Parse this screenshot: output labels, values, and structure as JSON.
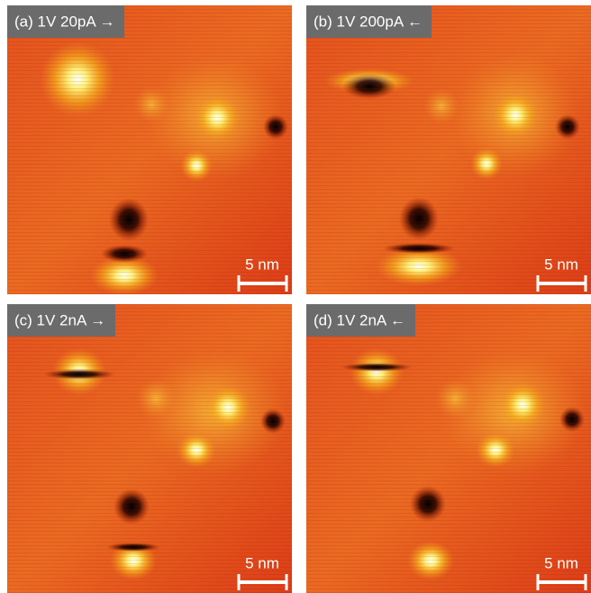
{
  "panels": [
    {
      "label": "(a) 1V 20pA →",
      "scale_bar": "5 nm"
    },
    {
      "label": "(b) 1V 200pA ←",
      "scale_bar": "5 nm"
    },
    {
      "label": "(c) 1V 2nA →",
      "scale_bar": "5 nm"
    },
    {
      "label": "(d) 1V 2nA ←",
      "scale_bar": "5 nm"
    }
  ]
}
